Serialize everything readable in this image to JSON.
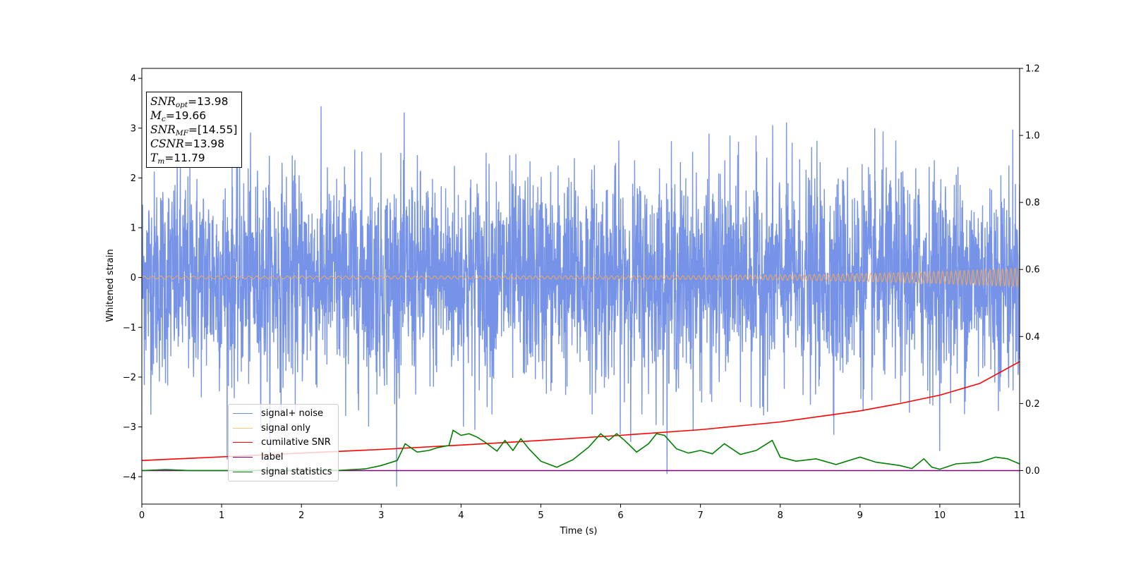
{
  "chart_data": {
    "type": "line",
    "title": "",
    "xlabel": "Time (s)",
    "ylabel": "Whitened strain",
    "xlim": [
      0,
      11
    ],
    "ylim": [
      -4.55,
      4.2
    ],
    "y2lim": [
      -0.1,
      1.2
    ],
    "x_ticks": [
      "0",
      "1",
      "2",
      "3",
      "4",
      "5",
      "6",
      "7",
      "8",
      "9",
      "10",
      "11"
    ],
    "y_ticks": [
      "−4",
      "−3",
      "−2",
      "−1",
      "0",
      "1",
      "2",
      "3",
      "4"
    ],
    "y2_ticks": [
      "0.0",
      "0.2",
      "0.4",
      "0.6",
      "0.8",
      "1.0",
      "1.2"
    ],
    "grid": false,
    "legend_position": "lower-left",
    "series": [
      {
        "name": "signal+ noise",
        "axis": "left",
        "color": "#6f8de6",
        "description": "noisy whitened strain, fluctuates mostly between about -2.2 and 2.5, peaks near 3.8 and -4.2"
      },
      {
        "name": "signal only",
        "axis": "left",
        "color": "#f5b041",
        "description": "chirp: amplitude ~0.03 at t=0 rising to ~0.2 at t=11",
        "amplitude_start": 0.03,
        "amplitude_end": 0.2
      },
      {
        "name": "cumilative SNR",
        "axis": "right",
        "color": "#ff0000",
        "x": [
          0,
          1,
          2,
          3,
          4,
          5,
          6,
          7,
          8,
          9,
          9.5,
          10,
          10.5,
          11
        ],
        "values": [
          0.03,
          0.041,
          0.052,
          0.063,
          0.076,
          0.09,
          0.105,
          0.122,
          0.145,
          0.178,
          0.2,
          0.225,
          0.26,
          0.325
        ]
      },
      {
        "name": "label",
        "axis": "right",
        "color": "#800080",
        "x": [
          0,
          11
        ],
        "values": [
          0.0,
          0.0
        ]
      },
      {
        "name": "signal statistics",
        "axis": "right",
        "color": "#008000",
        "x": [
          0,
          0.3,
          0.6,
          1.0,
          1.5,
          2.0,
          2.5,
          2.8,
          3.0,
          3.2,
          3.3,
          3.45,
          3.6,
          3.7,
          3.85,
          3.9,
          4.0,
          4.1,
          4.2,
          4.3,
          4.45,
          4.55,
          4.65,
          4.75,
          4.85,
          5.0,
          5.2,
          5.4,
          5.6,
          5.75,
          5.85,
          5.95,
          6.05,
          6.2,
          6.35,
          6.45,
          6.55,
          6.7,
          6.85,
          7.0,
          7.15,
          7.3,
          7.5,
          7.7,
          7.9,
          8.0,
          8.2,
          8.45,
          8.7,
          9.0,
          9.2,
          9.5,
          9.65,
          9.8,
          9.9,
          10.0,
          10.2,
          10.5,
          10.7,
          10.85,
          11.0
        ],
        "values": [
          0.0,
          0.003,
          0.0,
          0.0,
          0.001,
          0.0,
          0.001,
          0.005,
          0.015,
          0.03,
          0.08,
          0.055,
          0.06,
          0.068,
          0.075,
          0.12,
          0.105,
          0.11,
          0.1,
          0.085,
          0.058,
          0.09,
          0.06,
          0.095,
          0.065,
          0.028,
          0.01,
          0.032,
          0.07,
          0.11,
          0.09,
          0.11,
          0.09,
          0.055,
          0.08,
          0.11,
          0.105,
          0.065,
          0.052,
          0.06,
          0.05,
          0.08,
          0.048,
          0.06,
          0.09,
          0.04,
          0.028,
          0.035,
          0.018,
          0.04,
          0.025,
          0.015,
          0.006,
          0.035,
          0.01,
          0.004,
          0.02,
          0.025,
          0.04,
          0.035,
          0.02
        ]
      }
    ],
    "annotation_box": {
      "lines": [
        {
          "label": "SNR",
          "sub": "opt",
          "value": "=13.98"
        },
        {
          "label": "M",
          "sub": "c",
          "value": "=19.66"
        },
        {
          "label": "SNR",
          "sub": "MF",
          "value": "=[14.55]"
        },
        {
          "label": "CSNR",
          "sub": "",
          "value": "=13.98"
        },
        {
          "label": "T",
          "sub": "m",
          "value": "=11.79"
        }
      ]
    }
  }
}
